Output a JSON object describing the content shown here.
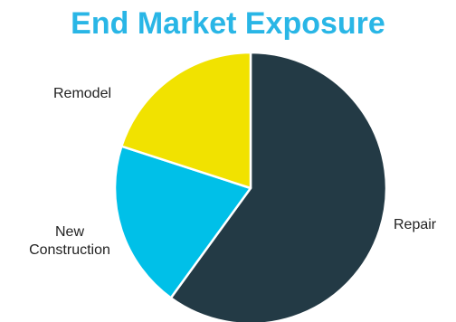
{
  "chart_data": {
    "type": "pie",
    "title": "End Market Exposure",
    "categories": [
      "Repair",
      "New Construction",
      "Remodel"
    ],
    "values": [
      60,
      20,
      20
    ],
    "colors": [
      "#233a45",
      "#00c0e8",
      "#f1e200"
    ],
    "start_angle_deg": 0,
    "direction": "clockwise",
    "legend": "none",
    "labels": [
      {
        "lines": [
          "Repair"
        ]
      },
      {
        "lines": [
          "New",
          "Construction"
        ]
      },
      {
        "lines": [
          "Remodel"
        ]
      }
    ]
  },
  "colors": {
    "title": "#29b6e6",
    "slice_border": "#ffffff"
  }
}
